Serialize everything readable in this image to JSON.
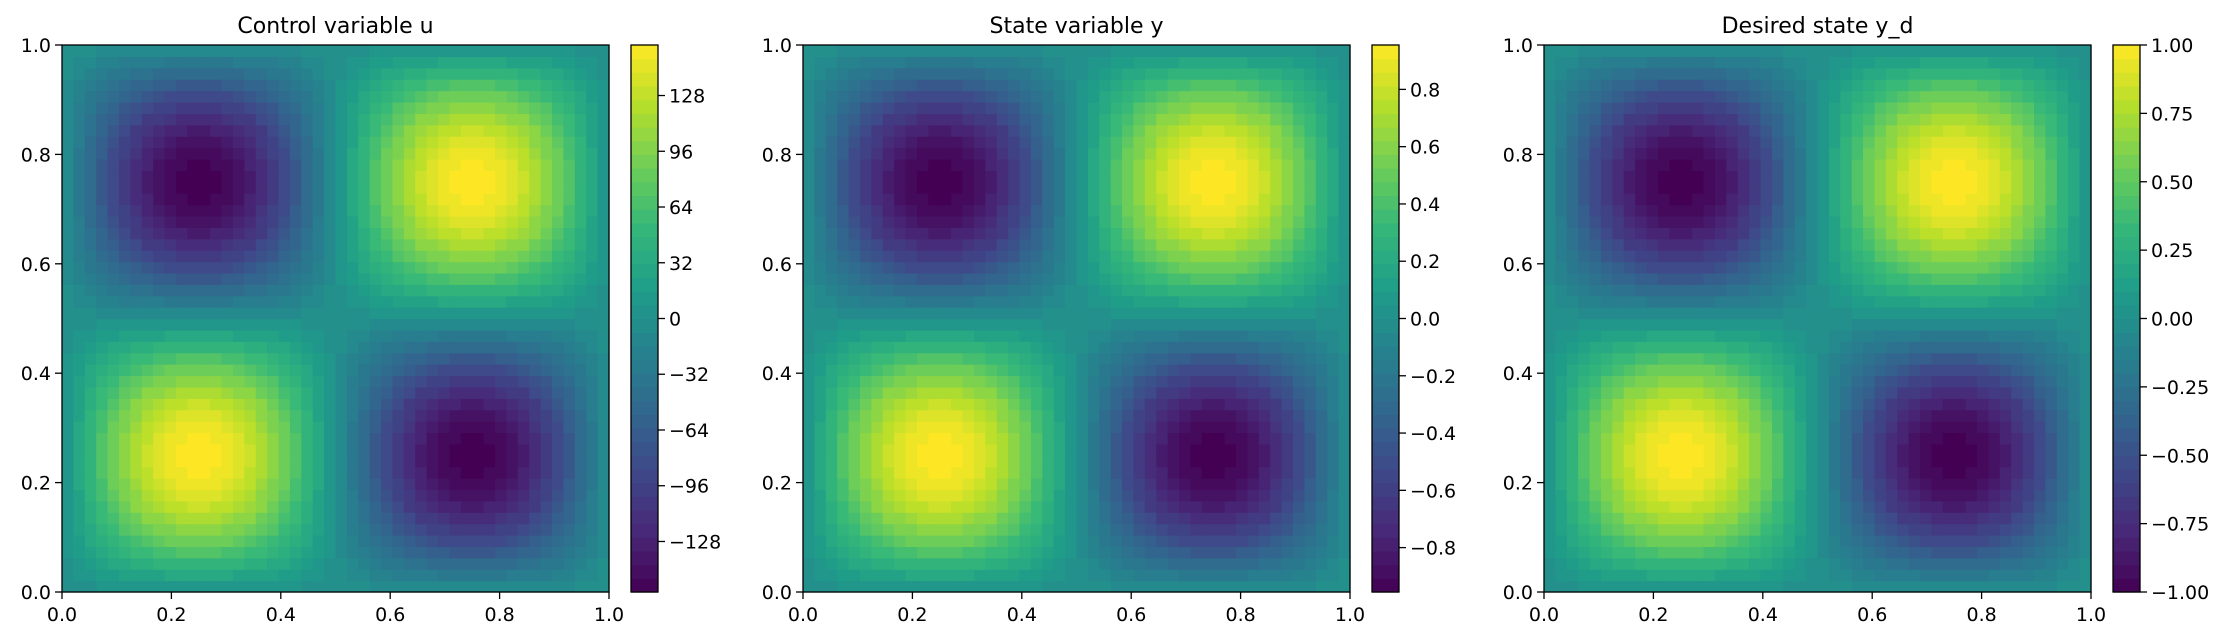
{
  "chart_data": [
    {
      "type": "heatmap",
      "title": "Control variable u",
      "xlim": [
        0,
        1
      ],
      "ylim": [
        0,
        1
      ],
      "xticks": [
        "0.0",
        "0.2",
        "0.4",
        "0.6",
        "0.8",
        "1.0"
      ],
      "yticks": [
        "0.0",
        "0.2",
        "0.4",
        "0.6",
        "0.8",
        "1.0"
      ],
      "field": "A * sin(2*pi*x) * sin(2*pi*y)",
      "amplitude": 157,
      "colorbar": {
        "range": [
          -157,
          157
        ],
        "ticks": [
          -128,
          -96,
          -64,
          -32,
          0,
          32,
          64,
          96,
          128
        ],
        "tick_labels": [
          "−128",
          "−96",
          "−64",
          "−32",
          "0",
          "32",
          "64",
          "96",
          "128"
        ]
      }
    },
    {
      "type": "heatmap",
      "title": "State variable y",
      "xlim": [
        0,
        1
      ],
      "ylim": [
        0,
        1
      ],
      "xticks": [
        "0.0",
        "0.2",
        "0.4",
        "0.6",
        "0.8",
        "1.0"
      ],
      "yticks": [
        "0.0",
        "0.2",
        "0.4",
        "0.6",
        "0.8",
        "1.0"
      ],
      "field": "A * sin(2*pi*x) * sin(2*pi*y)",
      "amplitude": 0.955,
      "colorbar": {
        "range": [
          -0.955,
          0.955
        ],
        "ticks": [
          -0.8,
          -0.6,
          -0.4,
          -0.2,
          0.0,
          0.2,
          0.4,
          0.6,
          0.8
        ],
        "tick_labels": [
          "−0.8",
          "−0.6",
          "−0.4",
          "−0.2",
          "0.0",
          "0.2",
          "0.4",
          "0.6",
          "0.8"
        ]
      }
    },
    {
      "type": "heatmap",
      "title": "Desired state y_d",
      "xlim": [
        0,
        1
      ],
      "ylim": [
        0,
        1
      ],
      "xticks": [
        "0.0",
        "0.2",
        "0.4",
        "0.6",
        "0.8",
        "1.0"
      ],
      "yticks": [
        "0.0",
        "0.2",
        "0.4",
        "0.6",
        "0.8",
        "1.0"
      ],
      "field": "A * sin(2*pi*x) * sin(2*pi*y)",
      "amplitude": 1.0,
      "colorbar": {
        "range": [
          -1.0,
          1.0
        ],
        "ticks": [
          -1.0,
          -0.75,
          -0.5,
          -0.25,
          0.0,
          0.25,
          0.5,
          0.75,
          1.0
        ],
        "tick_labels": [
          "−1.00",
          "−0.75",
          "−0.50",
          "−0.25",
          "0.00",
          "0.25",
          "0.50",
          "0.75",
          "1.00"
        ]
      }
    }
  ],
  "colormap": [
    "#440154",
    "#482878",
    "#3e4989",
    "#31688e",
    "#26828e",
    "#1f9e89",
    "#35b779",
    "#6ece58",
    "#b5de2b",
    "#fde725"
  ]
}
